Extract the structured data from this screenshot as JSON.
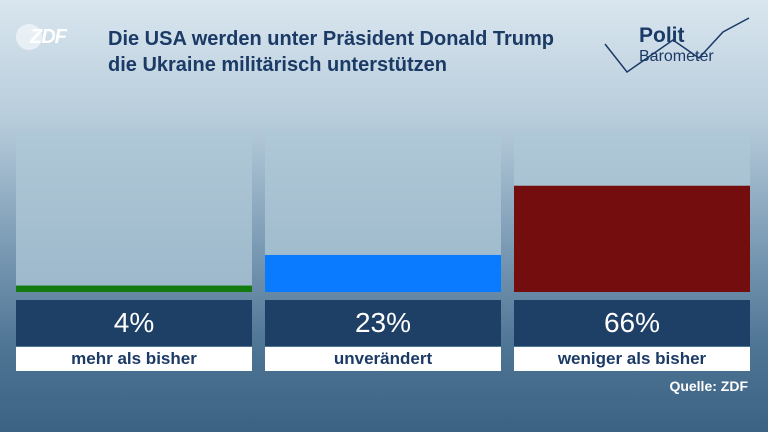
{
  "header": {
    "logo_text": "ZDF",
    "title": "Die USA werden unter Präsident Donald Trump die Ukraine militärisch unterstützen",
    "brand_line1": "Polit",
    "brand_line2": "Barometer"
  },
  "footer": {
    "source": "Quelle: ZDF"
  },
  "chart_data": {
    "type": "bar",
    "title": "Die USA werden unter Präsident Donald Trump die Ukraine militärisch unterstützen",
    "categories": [
      "mehr als bisher",
      "unverändert",
      "weniger als bisher"
    ],
    "values": [
      4,
      23,
      66
    ],
    "value_labels": [
      "4%",
      "23%",
      "66%"
    ],
    "unit": "%",
    "ylim": [
      0,
      100
    ],
    "bar_colors": [
      "#127a0e",
      "#0a7bff",
      "#730d0e"
    ],
    "grid": false,
    "legend": "none"
  }
}
